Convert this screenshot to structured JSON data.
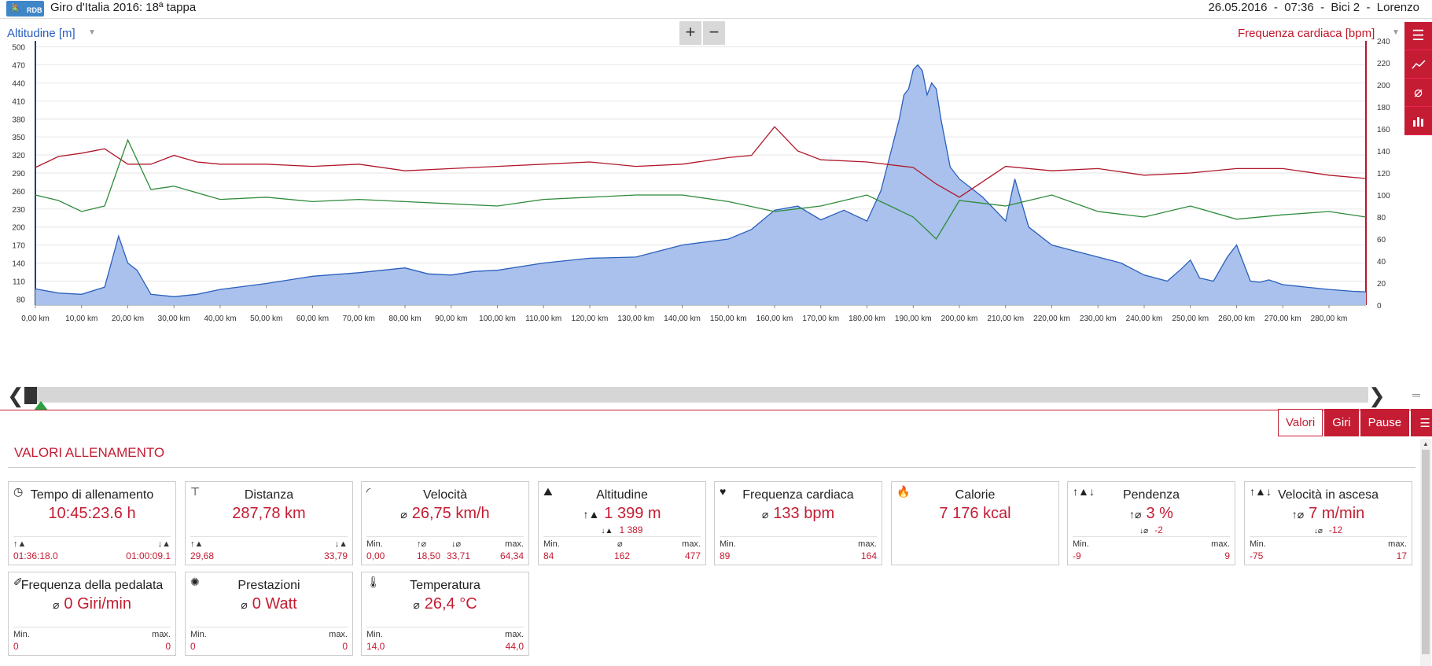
{
  "header": {
    "logo_text": "RDB",
    "title": "Giro d'Italia 2016: 18ª tappa",
    "date": "26.05.2016",
    "time": "07:36",
    "bike": "Bici 2",
    "user": "Lorenzo"
  },
  "chart": {
    "left_axis_label": "Altitudine [m]",
    "right_axis_label": "Frequenza cardiaca [bpm]",
    "zoom_in": "+",
    "zoom_out": "−"
  },
  "chart_data": {
    "type": "area",
    "xlabel": "",
    "x_ticks": [
      "0,00 km",
      "10,00 km",
      "20,00 km",
      "30,00 km",
      "40,00 km",
      "50,00 km",
      "60,00 km",
      "70,00 km",
      "80,00 km",
      "90,00 km",
      "100,00 km",
      "110,00 km",
      "120,00 km",
      "130,00 km",
      "140,00 km",
      "150,00 km",
      "160,00 km",
      "170,00 km",
      "180,00 km",
      "190,00 km",
      "200,00 km",
      "210,00 km",
      "220,00 km",
      "230,00 km",
      "240,00 km",
      "250,00 km",
      "260,00 km",
      "270,00 km",
      "280,00 km"
    ],
    "xlim": [
      0,
      288
    ],
    "y_left_ticks": [
      80,
      110,
      140,
      170,
      200,
      230,
      260,
      290,
      320,
      350,
      380,
      410,
      440,
      470,
      500
    ],
    "ylim_left": [
      70,
      510
    ],
    "y_right_ticks": [
      0,
      20,
      40,
      60,
      80,
      100,
      120,
      140,
      160,
      180,
      200,
      220,
      240
    ],
    "ylim_right": [
      0,
      240
    ],
    "grid": true,
    "series": [
      {
        "name": "Altitudine [m]",
        "axis": "left",
        "color": "#2a5fbd",
        "fill": "#a9c1ec",
        "x": [
          0,
          5,
          10,
          15,
          18,
          20,
          22,
          25,
          30,
          35,
          40,
          50,
          60,
          70,
          80,
          85,
          90,
          95,
          100,
          110,
          120,
          130,
          140,
          150,
          155,
          160,
          165,
          170,
          175,
          180,
          183,
          185,
          187,
          188,
          189,
          190,
          191,
          192,
          193,
          194,
          195,
          196,
          198,
          200,
          205,
          210,
          212,
          215,
          220,
          230,
          235,
          240,
          245,
          248,
          250,
          252,
          255,
          258,
          260,
          263,
          265,
          267,
          270,
          275,
          280,
          285,
          288
        ],
        "y": [
          97,
          90,
          88,
          100,
          185,
          140,
          128,
          88,
          84,
          88,
          96,
          106,
          118,
          124,
          132,
          122,
          120,
          126,
          128,
          140,
          148,
          150,
          170,
          180,
          196,
          228,
          235,
          212,
          228,
          210,
          260,
          320,
          380,
          420,
          430,
          462,
          470,
          460,
          420,
          440,
          430,
          380,
          300,
          280,
          250,
          210,
          280,
          200,
          170,
          150,
          140,
          120,
          110,
          130,
          145,
          115,
          110,
          150,
          170,
          110,
          108,
          112,
          104,
          100,
          96,
          93,
          92
        ]
      },
      {
        "name": "Frequenza cardiaca [bpm]",
        "axis": "right",
        "color": "#b0182a",
        "x": [
          0,
          5,
          10,
          15,
          20,
          25,
          30,
          35,
          40,
          50,
          60,
          70,
          80,
          90,
          100,
          110,
          120,
          130,
          140,
          150,
          155,
          160,
          165,
          170,
          180,
          190,
          195,
          200,
          210,
          220,
          230,
          240,
          250,
          260,
          270,
          280,
          288
        ],
        "y": [
          125,
          135,
          138,
          142,
          128,
          128,
          136,
          130,
          128,
          128,
          126,
          128,
          122,
          124,
          126,
          128,
          130,
          126,
          128,
          134,
          136,
          162,
          140,
          132,
          130,
          125,
          110,
          98,
          126,
          122,
          124,
          118,
          120,
          124,
          124,
          118,
          115
        ]
      },
      {
        "name": "Velocità",
        "axis": "right",
        "color": "#2e8b3a",
        "x": [
          0,
          5,
          10,
          15,
          20,
          25,
          30,
          40,
          50,
          60,
          70,
          80,
          90,
          100,
          110,
          120,
          130,
          140,
          150,
          160,
          170,
          180,
          190,
          195,
          200,
          210,
          220,
          230,
          240,
          250,
          260,
          270,
          280,
          288
        ],
        "y": [
          100,
          95,
          85,
          90,
          150,
          105,
          108,
          96,
          98,
          94,
          96,
          94,
          92,
          90,
          96,
          98,
          100,
          100,
          94,
          85,
          90,
          100,
          80,
          60,
          95,
          90,
          100,
          85,
          80,
          90,
          78,
          82,
          85,
          80
        ]
      }
    ]
  },
  "scrollbar": {
    "left_arrow": "❮",
    "right_arrow": "❯"
  },
  "tabs": [
    {
      "label": "Valori"
    },
    {
      "label": "Giri"
    },
    {
      "label": "Pause"
    }
  ],
  "section_title": "VALORI ALLENAMENTO",
  "cards": [
    {
      "title": "Tempo di allenamento",
      "value": "10:45:23.6 h",
      "l1": "",
      "l2": "",
      "v1": "01:36:18.0",
      "v2": "01:00:09.1"
    },
    {
      "title": "Distanza",
      "value": "287,78 km",
      "v1": "29,68",
      "v2": "33,79"
    },
    {
      "title": "Velocità",
      "value": "26,75 km/h",
      "min_label": "Min.",
      "max_label": "max.",
      "v_min": "0,00",
      "v_a": "18,50",
      "v_b": "33,71",
      "v_max": "64,34"
    },
    {
      "title": "Altitudine",
      "value": "1 399 m",
      "sub": "1 389",
      "min_label": "Min.",
      "max_label": "max.",
      "v_min": "84",
      "v_avg": "162",
      "v_max": "477"
    },
    {
      "title": "Frequenza cardiaca",
      "value": "133 bpm",
      "min_label": "Min.",
      "max_label": "max.",
      "v_min": "89",
      "v_max": "164"
    },
    {
      "title": "Calorie",
      "value": "7 176 kcal"
    },
    {
      "title": "Pendenza",
      "value": "3 %",
      "sub": "-2",
      "min_label": "Min.",
      "max_label": "max.",
      "v_min": "-9",
      "v_max": "9"
    },
    {
      "title": "Velocità in ascesa",
      "value": "7 m/min",
      "sub": "-12",
      "min_label": "Min.",
      "max_label": "max.",
      "v_min": "-75",
      "v_max": "17"
    },
    {
      "title": "Frequenza della pedalata",
      "value": "0 Giri/min",
      "min_label": "Min.",
      "max_label": "max.",
      "v_min": "0",
      "v_max": "0"
    },
    {
      "title": "Prestazioni",
      "value": "0 Watt",
      "min_label": "Min.",
      "max_label": "max.",
      "v_min": "0",
      "v_max": "0"
    },
    {
      "title": "Temperatura",
      "value": "26,4 °C",
      "min_label": "Min.",
      "max_label": "max.",
      "v_min": "14,0",
      "v_max": "44,0"
    }
  ],
  "colors": {
    "accent": "#c41c33",
    "altitude": "#2a5fbd",
    "heart": "#b0182a",
    "speed": "#2e8b3a"
  }
}
